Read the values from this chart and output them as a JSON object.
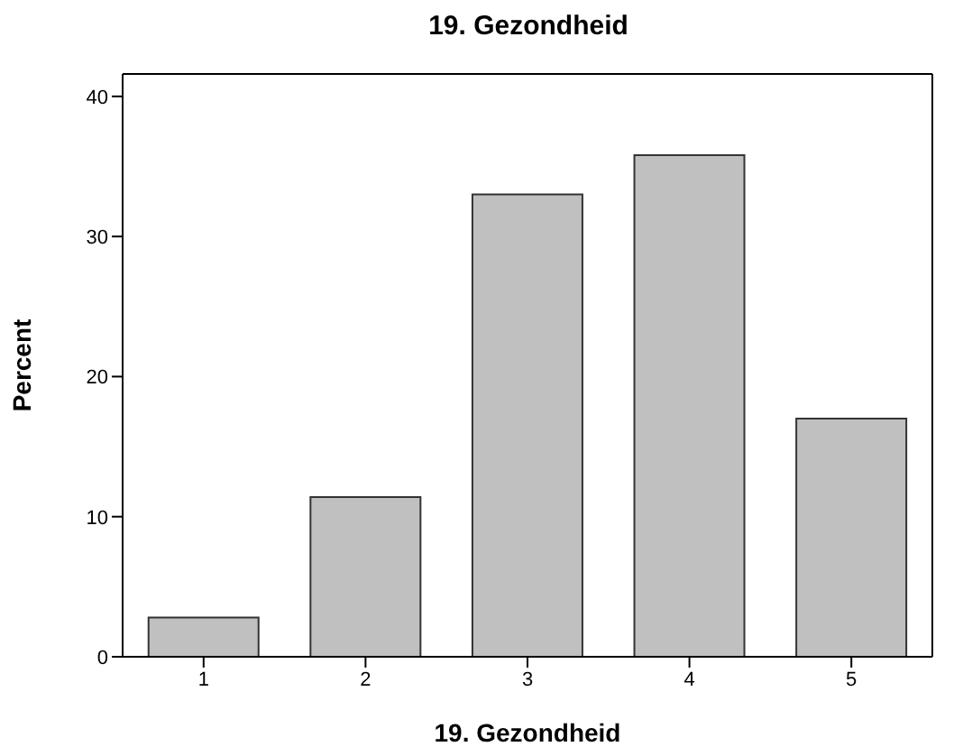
{
  "chart_data": {
    "type": "bar",
    "title": "19. Gezondheid",
    "xlabel": "19. Gezondheid",
    "ylabel": "Percent",
    "categories": [
      "1",
      "2",
      "3",
      "4",
      "5"
    ],
    "values": [
      2.8,
      11.4,
      33.0,
      35.8,
      17.0
    ],
    "color": "#c0c0c0",
    "ylim": [
      0,
      41.6
    ],
    "yticks": [
      0,
      10,
      20,
      30,
      40
    ]
  }
}
